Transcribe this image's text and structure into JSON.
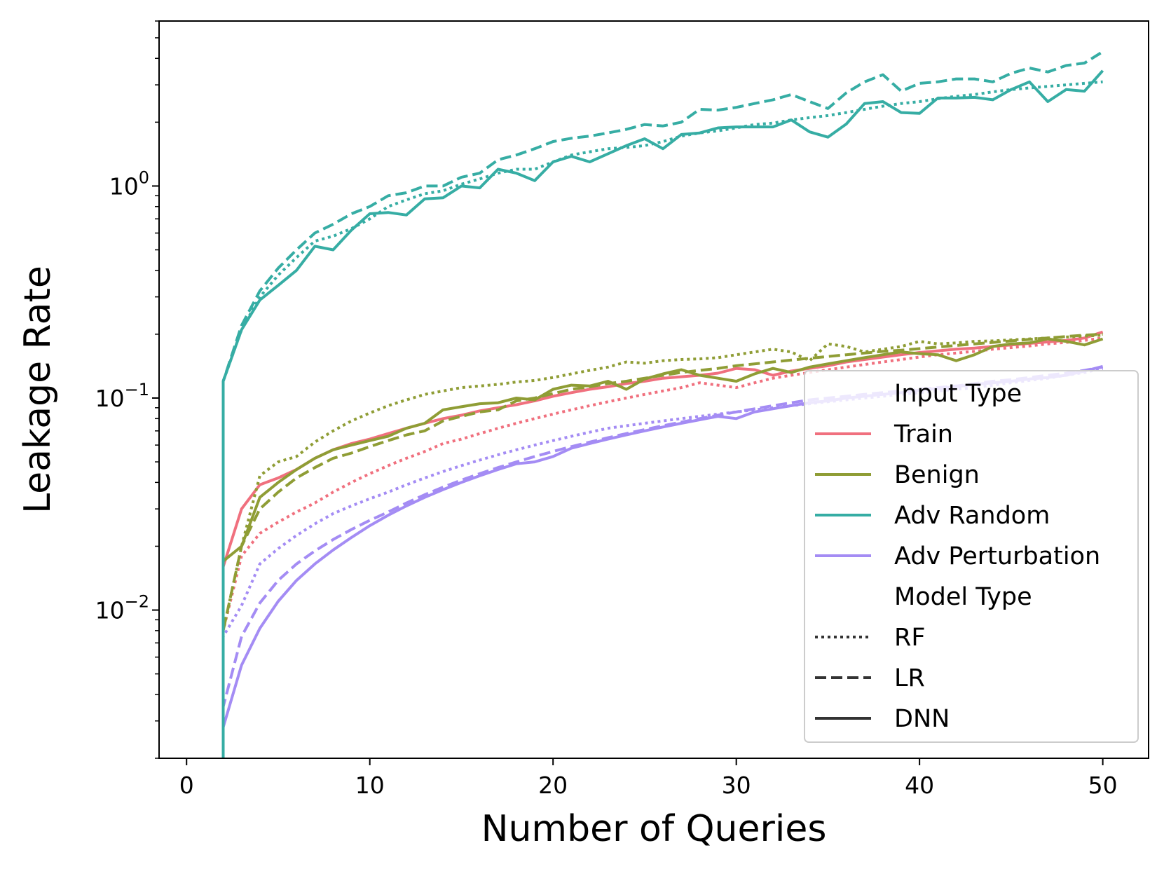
{
  "chart_data": {
    "type": "line",
    "xlabel": "Number of Queries",
    "ylabel": "Leakage Rate",
    "xlim": [
      -1.5,
      52.5
    ],
    "ylim": [
      0.002,
      6.0
    ],
    "yscale": "log",
    "x_ticks": [
      "0",
      "10",
      "20",
      "30",
      "40",
      "50"
    ],
    "x_tick_values": [
      0,
      10,
      20,
      30,
      40,
      50
    ],
    "y_ticks": [
      {
        "value": 1,
        "base": "10",
        "exp": "0"
      },
      {
        "value": 0.1,
        "base": "10",
        "exp": "−1"
      },
      {
        "value": 0.01,
        "base": "10",
        "exp": "−2"
      }
    ],
    "grid": false,
    "legend": {
      "placement": "lower-right",
      "input_title": "Input Type",
      "model_title": "Model Type",
      "input_types": [
        {
          "label": "Train",
          "color": "#f0707e"
        },
        {
          "label": "Benign",
          "color": "#8f9d35"
        },
        {
          "label": "Adv Random",
          "color": "#36ada4"
        },
        {
          "label": "Adv Perturbation",
          "color": "#a48cf4"
        }
      ],
      "model_types": [
        {
          "label": "RF",
          "dash": "dotted"
        },
        {
          "label": "LR",
          "dash": "dashed"
        },
        {
          "label": "DNN",
          "dash": "solid"
        }
      ]
    },
    "x": [
      2,
      3,
      4,
      5,
      6,
      7,
      8,
      9,
      10,
      11,
      12,
      13,
      14,
      15,
      16,
      17,
      18,
      19,
      20,
      21,
      22,
      23,
      24,
      25,
      26,
      27,
      28,
      29,
      30,
      31,
      32,
      33,
      34,
      35,
      36,
      37,
      38,
      39,
      40,
      41,
      42,
      43,
      44,
      45,
      46,
      47,
      48,
      49,
      50
    ],
    "series": [
      {
        "input": "Adv Random",
        "model": "DNN",
        "color": "#36ada4",
        "dash": "solid",
        "start": 0.002,
        "values": [
          0.12,
          0.21,
          0.29,
          0.34,
          0.4,
          0.52,
          0.5,
          0.62,
          0.74,
          0.75,
          0.73,
          0.87,
          0.88,
          1.0,
          0.98,
          1.2,
          1.15,
          1.06,
          1.3,
          1.38,
          1.3,
          1.42,
          1.55,
          1.67,
          1.5,
          1.75,
          1.78,
          1.88,
          1.9,
          1.9,
          1.9,
          2.05,
          1.8,
          1.7,
          1.96,
          2.45,
          2.5,
          2.22,
          2.2,
          2.6,
          2.6,
          2.62,
          2.55,
          2.85,
          3.1,
          2.5,
          2.85,
          2.8,
          3.5
        ]
      },
      {
        "input": "Adv Random",
        "model": "LR",
        "color": "#36ada4",
        "dash": "dashed",
        "start": 0.002,
        "values": [
          0.12,
          0.22,
          0.32,
          0.41,
          0.5,
          0.6,
          0.66,
          0.74,
          0.8,
          0.9,
          0.93,
          1.0,
          1.0,
          1.1,
          1.15,
          1.33,
          1.4,
          1.5,
          1.62,
          1.68,
          1.72,
          1.78,
          1.85,
          1.95,
          1.92,
          2.0,
          2.3,
          2.28,
          2.35,
          2.45,
          2.55,
          2.7,
          2.5,
          2.32,
          2.75,
          3.1,
          3.35,
          2.8,
          3.05,
          3.1,
          3.2,
          3.2,
          3.1,
          3.4,
          3.6,
          3.45,
          3.7,
          3.8,
          4.3
        ]
      },
      {
        "input": "Adv Random",
        "model": "RF",
        "color": "#36ada4",
        "dash": "dotted",
        "start": 0.002,
        "values": [
          0.12,
          0.21,
          0.3,
          0.38,
          0.46,
          0.55,
          0.58,
          0.63,
          0.7,
          0.8,
          0.86,
          0.92,
          0.95,
          1.02,
          1.08,
          1.15,
          1.2,
          1.2,
          1.3,
          1.4,
          1.45,
          1.5,
          1.52,
          1.55,
          1.62,
          1.72,
          1.78,
          1.82,
          1.88,
          1.95,
          1.98,
          2.05,
          2.1,
          2.15,
          2.22,
          2.3,
          2.38,
          2.45,
          2.5,
          2.58,
          2.65,
          2.7,
          2.78,
          2.85,
          2.9,
          2.95,
          3.0,
          3.05,
          3.1
        ]
      },
      {
        "input": "Train",
        "model": "DNN",
        "color": "#f0707e",
        "dash": "solid",
        "start": 0.002,
        "values": [
          0.016,
          0.03,
          0.039,
          0.042,
          0.046,
          0.052,
          0.057,
          0.061,
          0.064,
          0.068,
          0.072,
          0.076,
          0.08,
          0.083,
          0.087,
          0.09,
          0.093,
          0.097,
          0.102,
          0.106,
          0.11,
          0.113,
          0.117,
          0.12,
          0.124,
          0.126,
          0.128,
          0.131,
          0.138,
          0.136,
          0.128,
          0.134,
          0.138,
          0.142,
          0.148,
          0.152,
          0.156,
          0.16,
          0.164,
          0.167,
          0.17,
          0.172,
          0.175,
          0.178,
          0.181,
          0.184,
          0.187,
          0.192,
          0.205
        ]
      },
      {
        "input": "Train",
        "model": "RF",
        "color": "#f0707e",
        "dash": "dotted",
        "start": 0.002,
        "values": [
          0.008,
          0.018,
          0.023,
          0.026,
          0.029,
          0.032,
          0.036,
          0.04,
          0.044,
          0.048,
          0.052,
          0.056,
          0.061,
          0.064,
          0.068,
          0.072,
          0.076,
          0.08,
          0.084,
          0.088,
          0.092,
          0.096,
          0.1,
          0.104,
          0.108,
          0.112,
          0.118,
          0.115,
          0.112,
          0.118,
          0.124,
          0.128,
          0.132,
          0.136,
          0.14,
          0.144,
          0.148,
          0.152,
          0.156,
          0.16,
          0.163,
          0.166,
          0.17,
          0.173,
          0.176,
          0.18,
          0.183,
          0.187,
          0.192
        ]
      },
      {
        "input": "Benign",
        "model": "DNN",
        "color": "#8f9d35",
        "dash": "solid",
        "start": 0.002,
        "values": [
          0.017,
          0.02,
          0.034,
          0.04,
          0.046,
          0.052,
          0.057,
          0.06,
          0.063,
          0.066,
          0.072,
          0.076,
          0.088,
          0.091,
          0.094,
          0.095,
          0.1,
          0.098,
          0.11,
          0.115,
          0.114,
          0.12,
          0.11,
          0.123,
          0.13,
          0.136,
          0.128,
          0.124,
          0.12,
          0.13,
          0.138,
          0.132,
          0.14,
          0.145,
          0.15,
          0.155,
          0.16,
          0.165,
          0.162,
          0.16,
          0.15,
          0.16,
          0.175,
          0.18,
          0.182,
          0.19,
          0.185,
          0.178,
          0.19
        ]
      },
      {
        "input": "Benign",
        "model": "LR",
        "color": "#8f9d35",
        "dash": "dashed",
        "start": 0.002,
        "values": [
          0.008,
          0.02,
          0.03,
          0.036,
          0.042,
          0.047,
          0.052,
          0.055,
          0.059,
          0.063,
          0.067,
          0.07,
          0.078,
          0.082,
          0.086,
          0.088,
          0.097,
          0.1,
          0.105,
          0.11,
          0.113,
          0.117,
          0.12,
          0.124,
          0.128,
          0.132,
          0.135,
          0.138,
          0.142,
          0.145,
          0.148,
          0.151,
          0.154,
          0.157,
          0.16,
          0.163,
          0.166,
          0.168,
          0.171,
          0.174,
          0.177,
          0.18,
          0.183,
          0.186,
          0.189,
          0.192,
          0.195,
          0.198,
          0.2
        ]
      },
      {
        "input": "Benign",
        "model": "RF",
        "color": "#8f9d35",
        "dash": "dotted",
        "start": 0.002,
        "values": [
          0.008,
          0.02,
          0.043,
          0.05,
          0.053,
          0.062,
          0.07,
          0.078,
          0.085,
          0.092,
          0.098,
          0.104,
          0.108,
          0.112,
          0.114,
          0.116,
          0.119,
          0.121,
          0.125,
          0.13,
          0.135,
          0.14,
          0.148,
          0.146,
          0.15,
          0.152,
          0.153,
          0.155,
          0.16,
          0.165,
          0.17,
          0.165,
          0.15,
          0.18,
          0.175,
          0.165,
          0.17,
          0.175,
          0.185,
          0.18,
          0.182,
          0.185,
          0.186,
          0.188,
          0.19,
          0.192,
          0.194,
          0.196,
          0.198
        ]
      },
      {
        "input": "Adv Perturbation",
        "model": "DNN",
        "color": "#a48cf4",
        "dash": "solid",
        "start": 0.002,
        "values": [
          0.0028,
          0.0055,
          0.0082,
          0.011,
          0.0138,
          0.0165,
          0.0192,
          0.022,
          0.025,
          0.028,
          0.031,
          0.034,
          0.037,
          0.04,
          0.043,
          0.046,
          0.049,
          0.05,
          0.053,
          0.058,
          0.061,
          0.064,
          0.067,
          0.07,
          0.073,
          0.076,
          0.079,
          0.082,
          0.08,
          0.086,
          0.089,
          0.092,
          0.095,
          0.097,
          0.1,
          0.102,
          0.104,
          0.106,
          0.109,
          0.111,
          0.113,
          0.116,
          0.118,
          0.12,
          0.123,
          0.125,
          0.128,
          0.134,
          0.141
        ]
      },
      {
        "input": "Adv Perturbation",
        "model": "LR",
        "color": "#a48cf4",
        "dash": "dashed",
        "start": 0.002,
        "values": [
          0.0035,
          0.0075,
          0.0108,
          0.0138,
          0.0165,
          0.019,
          0.0215,
          0.024,
          0.0265,
          0.029,
          0.032,
          0.035,
          0.038,
          0.041,
          0.044,
          0.047,
          0.05,
          0.053,
          0.056,
          0.059,
          0.062,
          0.065,
          0.068,
          0.071,
          0.074,
          0.077,
          0.08,
          0.083,
          0.086,
          0.089,
          0.092,
          0.095,
          0.098,
          0.1,
          0.102,
          0.104,
          0.106,
          0.108,
          0.11,
          0.112,
          0.114,
          0.117,
          0.12,
          0.122,
          0.125,
          0.128,
          0.131,
          0.135,
          0.14
        ]
      },
      {
        "input": "Adv Perturbation",
        "model": "RF",
        "color": "#a48cf4",
        "dash": "dotted",
        "start": 0.002,
        "values": [
          0.0075,
          0.0105,
          0.0165,
          0.0195,
          0.0225,
          0.0255,
          0.0285,
          0.031,
          0.0335,
          0.036,
          0.039,
          0.042,
          0.045,
          0.048,
          0.051,
          0.054,
          0.057,
          0.06,
          0.063,
          0.066,
          0.069,
          0.072,
          0.074,
          0.076,
          0.078,
          0.08,
          0.082,
          0.084,
          0.086,
          0.088,
          0.09,
          0.092,
          0.094,
          0.096,
          0.098,
          0.1,
          0.102,
          0.104,
          0.106,
          0.108,
          0.11,
          0.112,
          0.115,
          0.118,
          0.121,
          0.124,
          0.128,
          0.132,
          0.138
        ]
      }
    ]
  }
}
